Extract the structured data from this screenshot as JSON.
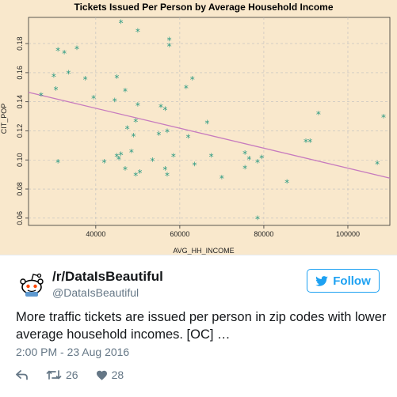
{
  "chart_data": {
    "type": "scatter",
    "title": "Tickets Issued Per Person by Average Household Income",
    "xlabel": "AVG_HH_INCOME",
    "ylabel": "CIT_POP",
    "xlim": [
      24000,
      110000
    ],
    "ylim": [
      0.055,
      0.198
    ],
    "x_ticks": [
      40000,
      60000,
      80000,
      100000
    ],
    "x_tick_labels": [
      "40000",
      "60000",
      "80000",
      "100000"
    ],
    "y_ticks": [
      0.06,
      0.08,
      0.1,
      0.12,
      0.14,
      0.16,
      0.18
    ],
    "y_tick_labels": [
      "0.06",
      "0.08",
      "0.10",
      "0.12",
      "0.14",
      "0.16",
      "0.18"
    ],
    "grid": true,
    "points": [
      {
        "x": 27000,
        "y": 0.144
      },
      {
        "x": 30000,
        "y": 0.157
      },
      {
        "x": 30500,
        "y": 0.148
      },
      {
        "x": 31000,
        "y": 0.175
      },
      {
        "x": 31000,
        "y": 0.098
      },
      {
        "x": 32500,
        "y": 0.173
      },
      {
        "x": 33500,
        "y": 0.159
      },
      {
        "x": 35500,
        "y": 0.176
      },
      {
        "x": 37500,
        "y": 0.155
      },
      {
        "x": 39500,
        "y": 0.142
      },
      {
        "x": 42000,
        "y": 0.098
      },
      {
        "x": 44500,
        "y": 0.14
      },
      {
        "x": 45000,
        "y": 0.156
      },
      {
        "x": 45000,
        "y": 0.102
      },
      {
        "x": 45500,
        "y": 0.1
      },
      {
        "x": 46000,
        "y": 0.103
      },
      {
        "x": 46000,
        "y": 0.194
      },
      {
        "x": 47000,
        "y": 0.147
      },
      {
        "x": 47000,
        "y": 0.093
      },
      {
        "x": 47500,
        "y": 0.121
      },
      {
        "x": 48500,
        "y": 0.105
      },
      {
        "x": 49000,
        "y": 0.116
      },
      {
        "x": 49500,
        "y": 0.126
      },
      {
        "x": 49500,
        "y": 0.089
      },
      {
        "x": 50000,
        "y": 0.137
      },
      {
        "x": 50000,
        "y": 0.188
      },
      {
        "x": 50500,
        "y": 0.091
      },
      {
        "x": 53500,
        "y": 0.099
      },
      {
        "x": 55000,
        "y": 0.117
      },
      {
        "x": 55500,
        "y": 0.136
      },
      {
        "x": 56500,
        "y": 0.134
      },
      {
        "x": 56500,
        "y": 0.093
      },
      {
        "x": 57000,
        "y": 0.089
      },
      {
        "x": 57000,
        "y": 0.119
      },
      {
        "x": 57500,
        "y": 0.182
      },
      {
        "x": 57500,
        "y": 0.178
      },
      {
        "x": 58500,
        "y": 0.102
      },
      {
        "x": 61500,
        "y": 0.149
      },
      {
        "x": 62000,
        "y": 0.115
      },
      {
        "x": 63000,
        "y": 0.155
      },
      {
        "x": 63500,
        "y": 0.096
      },
      {
        "x": 66500,
        "y": 0.125
      },
      {
        "x": 67500,
        "y": 0.102
      },
      {
        "x": 70000,
        "y": 0.087
      },
      {
        "x": 75500,
        "y": 0.104
      },
      {
        "x": 75500,
        "y": 0.094
      },
      {
        "x": 76500,
        "y": 0.1
      },
      {
        "x": 78500,
        "y": 0.098
      },
      {
        "x": 79500,
        "y": 0.101
      },
      {
        "x": 78500,
        "y": 0.059
      },
      {
        "x": 85500,
        "y": 0.084
      },
      {
        "x": 90000,
        "y": 0.112
      },
      {
        "x": 91000,
        "y": 0.112
      },
      {
        "x": 93000,
        "y": 0.131
      },
      {
        "x": 107000,
        "y": 0.097
      },
      {
        "x": 108500,
        "y": 0.129
      }
    ],
    "trendline": {
      "x": [
        24000,
        110000
      ],
      "y": [
        0.1465,
        0.0875
      ]
    },
    "colors": {
      "background": "#f9e8cc",
      "points": "#2b9a82",
      "trendline": "#c77bbe",
      "grid": "#bfbfbf"
    }
  },
  "tweet": {
    "name": "/r/DataIsBeautiful",
    "handle": "@DataIsBeautiful",
    "follow_label": "Follow",
    "text": "More traffic tickets are issued per person in zip codes with lower average household incomes. [OC] …",
    "timestamp": "2:00 PM - 23 Aug 2016",
    "retweets": "26",
    "likes": "28",
    "colors": {
      "accent": "#1da1f2",
      "muted": "#657786",
      "text": "#14171a",
      "reddit_orange": "#ff4500"
    }
  }
}
